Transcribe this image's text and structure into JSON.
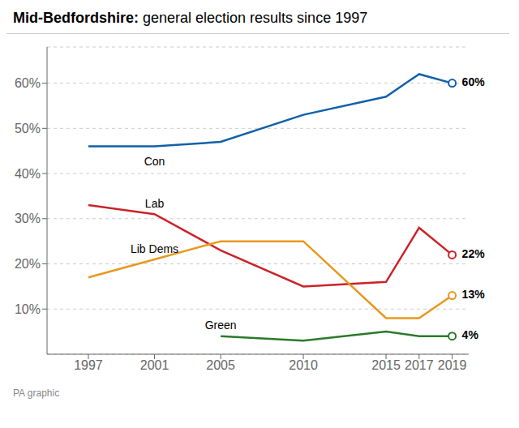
{
  "chart_data": {
    "type": "line",
    "title": "Mid-Bedfordshire:",
    "subtitle": "general election results since 1997",
    "annotations": [
      "PA graphic"
    ],
    "x": [
      1997,
      2001,
      2005,
      2010,
      2015,
      2017,
      2019
    ],
    "series": [
      {
        "name": "Con",
        "color": "#1260AA",
        "values": [
          46,
          46,
          47,
          53,
          57,
          62,
          60
        ],
        "value_labels": [
          null,
          null,
          null,
          null,
          null,
          null,
          "60%"
        ]
      },
      {
        "name": "Lab",
        "color": "#CC2228",
        "values": [
          33,
          31,
          23,
          15,
          16,
          28,
          22
        ],
        "value_labels": [
          null,
          null,
          null,
          null,
          null,
          null,
          "22%"
        ]
      },
      {
        "name": "Lib Dems",
        "color": "#E8981C",
        "values": [
          17,
          21,
          25,
          25,
          8,
          8,
          13
        ],
        "value_labels": [
          null,
          null,
          null,
          null,
          null,
          null,
          "13%"
        ]
      },
      {
        "name": "Green",
        "color": "#2A7A2A",
        "values": [
          null,
          null,
          4,
          3,
          5,
          4,
          4
        ],
        "value_labels": [
          null,
          null,
          null,
          null,
          null,
          null,
          "4%"
        ]
      }
    ],
    "xlim": [
      1994.5,
      2020
    ],
    "xticks": [
      1997,
      2001,
      2005,
      2010,
      2015,
      2017,
      2019
    ],
    "ylim": [
      0,
      68
    ],
    "yticks": [
      {
        "value": 10,
        "label": "10%"
      },
      {
        "value": 20,
        "label": "20%"
      },
      {
        "value": 30,
        "label": "30%"
      },
      {
        "value": 40,
        "label": "40%"
      },
      {
        "value": 50,
        "label": "50%"
      },
      {
        "value": 60,
        "label": "60%"
      }
    ],
    "grid": true
  }
}
